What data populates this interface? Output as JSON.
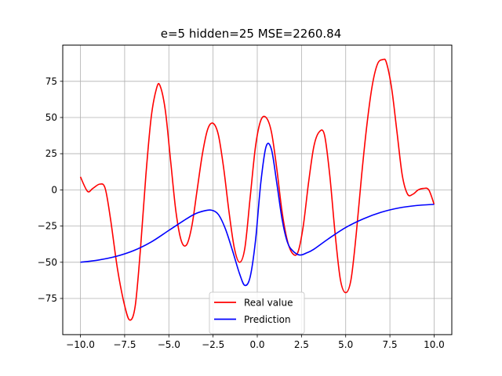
{
  "chart_data": {
    "type": "line",
    "title": "e=5 hidden=25 MSE=2260.84",
    "xlabel": "",
    "ylabel": "",
    "xlim": [
      -11.0,
      11.0
    ],
    "ylim": [
      -100,
      100
    ],
    "x_ticks": [
      -10.0,
      -7.5,
      -5.0,
      -2.5,
      0.0,
      2.5,
      5.0,
      7.5,
      10.0
    ],
    "x_tick_labels": [
      "−10.0",
      "−7.5",
      "−5.0",
      "−2.5",
      "0.0",
      "2.5",
      "5.0",
      "7.5",
      "10.0"
    ],
    "y_ticks": [
      -75,
      -50,
      -25,
      0,
      25,
      50,
      75
    ],
    "y_tick_labels": [
      "−75",
      "−50",
      "−25",
      "0",
      "25",
      "50",
      "75"
    ],
    "grid": true,
    "legend_position": "lower-center",
    "series": [
      {
        "name": "Real value",
        "color": "#ff0000",
        "x": [
          -10.0,
          -9.6,
          -9.3,
          -8.9,
          -8.6,
          -8.3,
          -7.9,
          -7.5,
          -7.2,
          -6.9,
          -6.6,
          -6.3,
          -6.0,
          -5.7,
          -5.5,
          -5.2,
          -4.9,
          -4.6,
          -4.3,
          -4.0,
          -3.7,
          -3.4,
          -3.1,
          -2.8,
          -2.5,
          -2.2,
          -1.9,
          -1.6,
          -1.3,
          -1.0,
          -0.7,
          -0.4,
          -0.1,
          0.2,
          0.5,
          0.8,
          1.1,
          1.4,
          1.7,
          2.0,
          2.3,
          2.6,
          2.9,
          3.2,
          3.5,
          3.8,
          4.1,
          4.4,
          4.7,
          5.0,
          5.3,
          5.6,
          5.9,
          6.2,
          6.5,
          6.8,
          7.1,
          7.3,
          7.6,
          7.9,
          8.2,
          8.5,
          8.8,
          9.1,
          9.4,
          9.7,
          10.0
        ],
        "y": [
          9,
          -1,
          1,
          4,
          1,
          -20,
          -55,
          -80,
          -90,
          -80,
          -40,
          10,
          50,
          70,
          72,
          55,
          20,
          -15,
          -35,
          -38,
          -25,
          0,
          25,
          42,
          46,
          38,
          15,
          -15,
          -40,
          -50,
          -40,
          -5,
          30,
          48,
          50,
          40,
          15,
          -15,
          -35,
          -44,
          -43,
          -25,
          5,
          30,
          40,
          38,
          10,
          -30,
          -62,
          -71,
          -62,
          -30,
          10,
          45,
          72,
          87,
          90,
          88,
          70,
          40,
          10,
          -3,
          -3,
          0,
          1,
          0,
          -10
        ]
      },
      {
        "name": "Prediction",
        "color": "#0000ff",
        "x": [
          -10.0,
          -9.0,
          -8.0,
          -7.0,
          -6.0,
          -5.0,
          -4.0,
          -3.5,
          -3.0,
          -2.6,
          -2.2,
          -1.8,
          -1.4,
          -1.0,
          -0.7,
          -0.4,
          -0.1,
          0.2,
          0.5,
          0.8,
          1.1,
          1.4,
          1.7,
          2.0,
          2.4,
          2.8,
          3.2,
          4.0,
          5.0,
          6.0,
          7.0,
          8.0,
          9.0,
          10.0
        ],
        "y": [
          -50,
          -48.5,
          -46,
          -42,
          -36,
          -28,
          -20,
          -16.5,
          -14.5,
          -14,
          -17,
          -27,
          -42,
          -58,
          -66,
          -60,
          -35,
          5,
          30,
          28,
          5,
          -20,
          -36,
          -42,
          -45,
          -43.5,
          -41,
          -34,
          -26,
          -20,
          -15.5,
          -12.5,
          -10.8,
          -10
        ]
      }
    ]
  }
}
